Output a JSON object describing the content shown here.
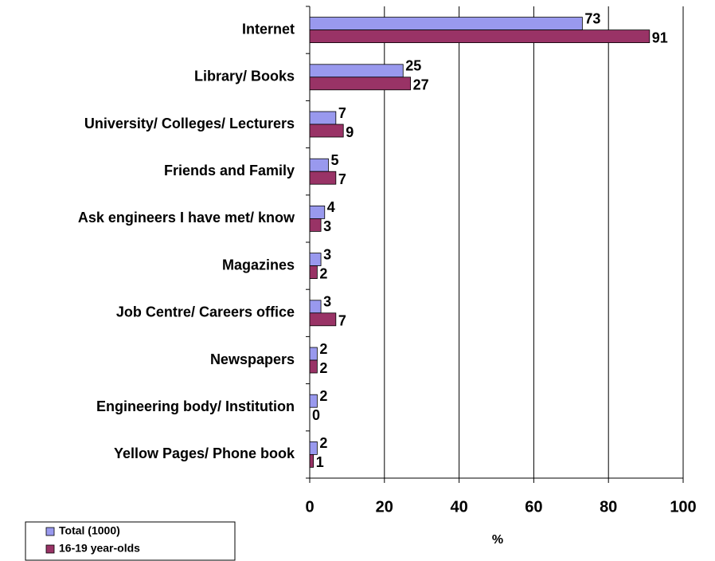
{
  "chart_data": {
    "type": "bar",
    "orientation": "horizontal",
    "categories": [
      "Internet",
      "Library/ Books",
      "University/ Colleges/ Lecturers",
      "Friends and Family",
      "Ask engineers I have met/ know",
      "Magazines",
      "Job Centre/ Careers office",
      "Newspapers",
      "Engineering body/ Institution",
      "Yellow Pages/ Phone book"
    ],
    "series": [
      {
        "name": "Total (1000)",
        "color": "#9999ee",
        "values": [
          73,
          25,
          7,
          5,
          4,
          3,
          3,
          2,
          2,
          2
        ]
      },
      {
        "name": "16-19 year-olds",
        "color": "#993366",
        "values": [
          91,
          27,
          9,
          7,
          3,
          2,
          7,
          2,
          0,
          1
        ]
      }
    ],
    "xlabel": "%",
    "xlim": [
      0,
      100
    ],
    "xticks": [
      0,
      20,
      40,
      60,
      80,
      100
    ],
    "grid": true,
    "legend": "bottom-left"
  }
}
